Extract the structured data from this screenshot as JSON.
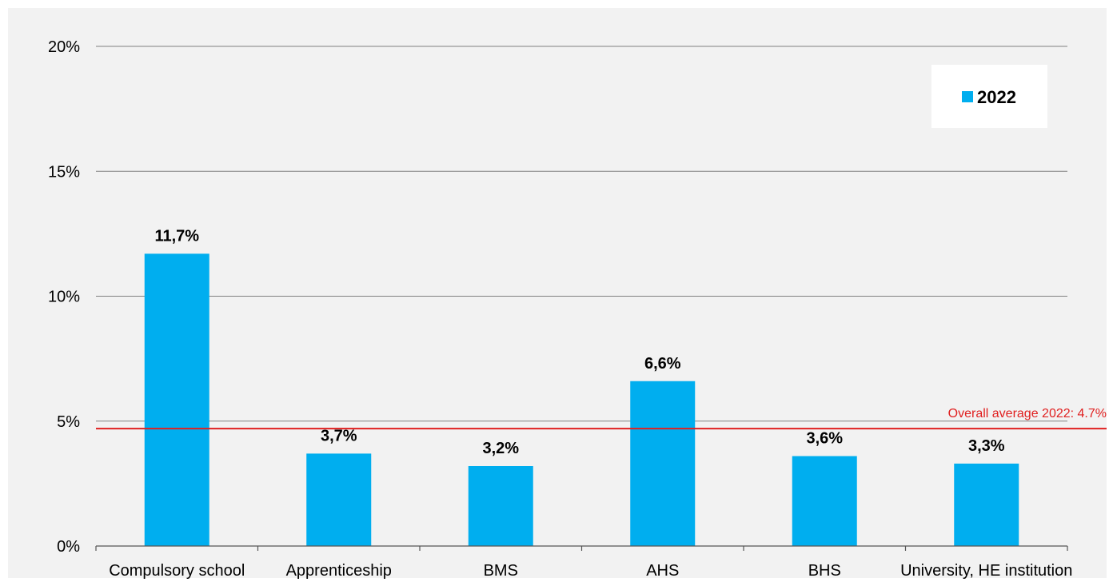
{
  "chart_data": {
    "type": "bar",
    "categories": [
      "Compulsory school",
      "Apprenticeship",
      "BMS",
      "AHS",
      "BHS",
      "University, HE institution"
    ],
    "series": [
      {
        "name": "2022",
        "values": [
          11.7,
          3.7,
          3.2,
          6.6,
          3.6,
          3.3
        ],
        "labels": [
          "11,7%",
          "3,7%",
          "3,2%",
          "6,6%",
          "3,6%",
          "3,3%"
        ],
        "color": "#00aeef"
      }
    ],
    "ylim": [
      0,
      20
    ],
    "yticks": [
      0,
      5,
      10,
      15,
      20
    ],
    "ytick_labels": [
      "0%",
      "5%",
      "10%",
      "15%",
      "20%"
    ],
    "grid": true,
    "legend": {
      "placement": "top-right",
      "entries": [
        "2022"
      ]
    },
    "reference_line": {
      "value": 4.7,
      "label": "Overall average 2022: 4.7%",
      "color": "#e02020"
    },
    "colors": {
      "plot_background": "#f2f2f2",
      "grid": "#808080",
      "axis": "#555555"
    }
  }
}
